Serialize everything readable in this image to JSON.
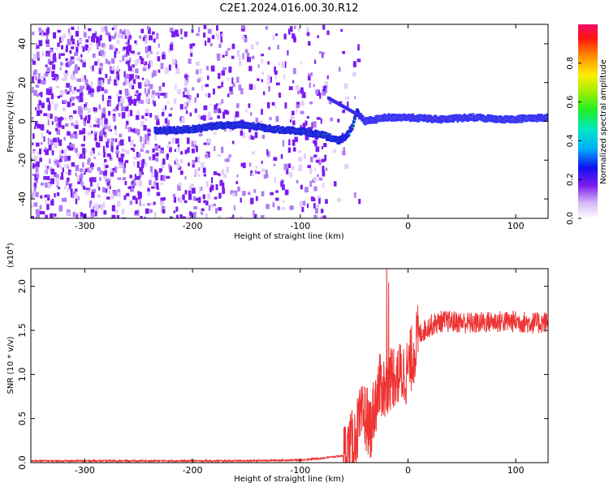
{
  "title": "C2E1.2024.016.00.30.R12",
  "colorbar": {
    "label": "Normalized spectral amplitude",
    "ticks": [
      "0.0",
      "0.2",
      "0.4",
      "0.6",
      "0.8"
    ],
    "tick_values": [
      0.0,
      0.2,
      0.4,
      0.6,
      0.8
    ],
    "range": [
      0,
      1
    ]
  },
  "colors": {
    "snr_line": "#ee3333",
    "axis": "#000000",
    "background": "#ffffff"
  },
  "chart_data": [
    {
      "type": "heatmap",
      "xlabel": "Height of straight line (km)",
      "ylabel": "Frequency (Hz)",
      "xlim": [
        -350,
        130
      ],
      "ylim": [
        -50,
        50
      ],
      "xticks": [
        -300,
        -200,
        -100,
        0,
        100
      ],
      "xtick_labels": [
        "-300",
        "-200",
        "-100",
        "0",
        "100"
      ],
      "yticks": [
        -40,
        -20,
        0,
        20,
        40
      ],
      "ytick_labels": [
        "-40",
        "-20",
        "0",
        "20",
        "40"
      ],
      "ridge": {
        "x": [
          -235,
          -200,
          -175,
          -150,
          -125,
          -100,
          -80,
          -65,
          -58,
          -52,
          -48,
          -45,
          -40,
          -30,
          -20,
          0,
          30,
          60,
          90,
          130
        ],
        "y": [
          -5,
          -4,
          -2,
          -2,
          -4,
          -5,
          -7,
          -10,
          -8,
          -3,
          5,
          3,
          0,
          1,
          2,
          2,
          1,
          2,
          1,
          2
        ]
      }
    },
    {
      "type": "line",
      "xlabel": "Height of straight line (km)",
      "ylabel": "SNR (10 * v/v)",
      "y_multiplier_label": "(x10",
      "y_multiplier_exp": "4",
      "xlim": [
        -350,
        130
      ],
      "ylim": [
        0,
        2.2
      ],
      "xticks": [
        -300,
        -200,
        -100,
        0,
        100
      ],
      "xtick_labels": [
        "-300",
        "-200",
        "-100",
        "0",
        "100"
      ],
      "yticks": [
        0,
        0.5,
        1.0,
        1.5,
        2.0
      ],
      "ytick_labels": [
        "0.0",
        "0.5",
        "1.0",
        "1.5",
        "2.0"
      ],
      "series": [
        {
          "x": [
            -350,
            -250,
            -150,
            -100,
            -80,
            -60,
            -50,
            -45,
            -40,
            -35,
            -30,
            -25,
            -20,
            -15,
            -10,
            -5,
            0,
            5,
            10,
            20,
            30,
            40,
            60,
            80,
            100,
            120,
            130
          ],
          "y": [
            0.02,
            0.02,
            0.02,
            0.03,
            0.05,
            0.08,
            0.25,
            0.45,
            0.55,
            0.4,
            0.7,
            0.9,
            0.8,
            1.0,
            1.0,
            1.0,
            1.05,
            1.25,
            1.45,
            1.55,
            1.6,
            1.6,
            1.58,
            1.6,
            1.6,
            1.58,
            1.6
          ]
        }
      ]
    }
  ]
}
